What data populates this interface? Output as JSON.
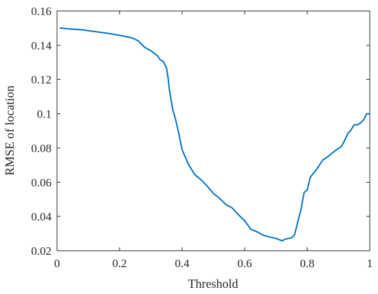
{
  "chart_data": {
    "type": "line",
    "title": "",
    "xlabel": "Threshold",
    "ylabel": "RMSE of location",
    "xlim": [
      0,
      1
    ],
    "ylim": [
      0.02,
      0.16
    ],
    "xticks": [
      "0",
      "0.2",
      "0.4",
      "0.6",
      "0.8",
      "1"
    ],
    "yticks": [
      "0.02",
      "0.04",
      "0.06",
      "0.08",
      "0.1",
      "0.12",
      "0.14",
      "0.16"
    ],
    "grid": false,
    "legend": "none",
    "series": [
      {
        "color": "#0072bd",
        "x": [
          0.01,
          0.04,
          0.08,
          0.12,
          0.16,
          0.2,
          0.24,
          0.26,
          0.28,
          0.3,
          0.32,
          0.33,
          0.34,
          0.35,
          0.355,
          0.36,
          0.37,
          0.38,
          0.39,
          0.4,
          0.42,
          0.44,
          0.46,
          0.48,
          0.5,
          0.52,
          0.54,
          0.56,
          0.58,
          0.6,
          0.62,
          0.64,
          0.66,
          0.68,
          0.7,
          0.72,
          0.73,
          0.75,
          0.76,
          0.77,
          0.78,
          0.79,
          0.8,
          0.81,
          0.83,
          0.85,
          0.87,
          0.89,
          0.91,
          0.92,
          0.93,
          0.94,
          0.95,
          0.96,
          0.97,
          0.98,
          0.99,
          1.0
        ],
        "y": [
          0.15,
          0.1495,
          0.149,
          0.148,
          0.147,
          0.1458,
          0.1443,
          0.1425,
          0.1388,
          0.1368,
          0.134,
          0.1315,
          0.1305,
          0.1268,
          0.121,
          0.113,
          0.1025,
          0.096,
          0.088,
          0.079,
          0.0705,
          0.0645,
          0.0615,
          0.0578,
          0.0535,
          0.0505,
          0.047,
          0.045,
          0.041,
          0.0375,
          0.0325,
          0.031,
          0.029,
          0.028,
          0.0272,
          0.0258,
          0.0268,
          0.0275,
          0.0295,
          0.037,
          0.044,
          0.054,
          0.0555,
          0.063,
          0.0675,
          0.073,
          0.0755,
          0.0785,
          0.081,
          0.0845,
          0.0885,
          0.0905,
          0.0935,
          0.0935,
          0.0945,
          0.0963,
          0.1,
          0.1
        ]
      }
    ]
  }
}
